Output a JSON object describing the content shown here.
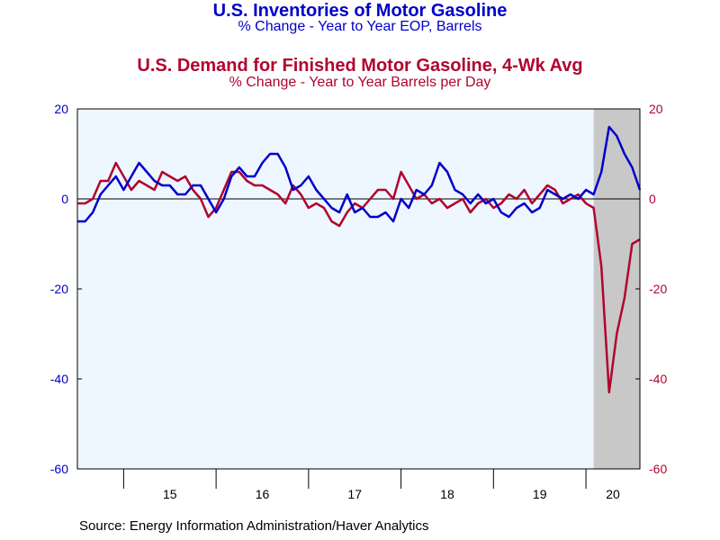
{
  "titles": {
    "title1": "U.S. Inventories of Motor Gasoline",
    "subtitle1": "% Change - Year to Year    EOP,  Barrels",
    "title2": "U.S. Demand for Finished Motor Gasoline, 4-Wk Avg",
    "subtitle2": "% Change - Year to Year     Barrels per Day"
  },
  "source": "Source:  Energy Information Administration/Haver Analytics",
  "chart_data": {
    "type": "line",
    "xlim": [
      "2014-07",
      "2020-08"
    ],
    "ylim": [
      -60,
      20
    ],
    "y_ticks": [
      20,
      0,
      -20,
      -40,
      -60
    ],
    "x_tick_labels": [
      "15",
      "16",
      "17",
      "18",
      "19",
      "20"
    ],
    "recession_shading": [
      "2020-02",
      "2020-08"
    ],
    "zero_line": true,
    "grid": false,
    "colors": {
      "inventories": "#0000c8",
      "demand": "#b0052e",
      "plot_bg": "#eef6ff",
      "shade": "#c8c8c8"
    },
    "series": [
      {
        "values": [
          [
            "2014-07",
            -5
          ],
          [
            "2014-08",
            -5
          ],
          [
            "2014-09",
            -3
          ],
          [
            "2014-10",
            1
          ],
          [
            "2014-11",
            3
          ],
          [
            "2014-12",
            5
          ],
          [
            "2015-01",
            2
          ],
          [
            "2015-02",
            5
          ],
          [
            "2015-03",
            8
          ],
          [
            "2015-04",
            6
          ],
          [
            "2015-05",
            4
          ],
          [
            "2015-06",
            3
          ],
          [
            "2015-07",
            3
          ],
          [
            "2015-08",
            1
          ],
          [
            "2015-09",
            1
          ],
          [
            "2015-10",
            3
          ],
          [
            "2015-11",
            3
          ],
          [
            "2015-12",
            0
          ],
          [
            "2016-01",
            -3
          ],
          [
            "2016-02",
            0
          ],
          [
            "2016-03",
            5
          ],
          [
            "2016-04",
            7
          ],
          [
            "2016-05",
            5
          ],
          [
            "2016-06",
            5
          ],
          [
            "2016-07",
            8
          ],
          [
            "2016-08",
            10
          ],
          [
            "2016-09",
            10
          ],
          [
            "2016-10",
            7
          ],
          [
            "2016-11",
            2
          ],
          [
            "2016-12",
            3
          ],
          [
            "2017-01",
            5
          ],
          [
            "2017-02",
            2
          ],
          [
            "2017-03",
            0
          ],
          [
            "2017-04",
            -2
          ],
          [
            "2017-05",
            -3
          ],
          [
            "2017-06",
            1
          ],
          [
            "2017-07",
            -3
          ],
          [
            "2017-08",
            -2
          ],
          [
            "2017-09",
            -4
          ],
          [
            "2017-10",
            -4
          ],
          [
            "2017-11",
            -3
          ],
          [
            "2017-12",
            -5
          ],
          [
            "2018-01",
            0
          ],
          [
            "2018-02",
            -2
          ],
          [
            "2018-03",
            2
          ],
          [
            "2018-04",
            1
          ],
          [
            "2018-05",
            3
          ],
          [
            "2018-06",
            8
          ],
          [
            "2018-07",
            6
          ],
          [
            "2018-08",
            2
          ],
          [
            "2018-09",
            1
          ],
          [
            "2018-10",
            -1
          ],
          [
            "2018-11",
            1
          ],
          [
            "2018-12",
            -1
          ],
          [
            "2019-01",
            0
          ],
          [
            "2019-02",
            -3
          ],
          [
            "2019-03",
            -4
          ],
          [
            "2019-04",
            -2
          ],
          [
            "2019-05",
            -1
          ],
          [
            "2019-06",
            -3
          ],
          [
            "2019-07",
            -2
          ],
          [
            "2019-08",
            2
          ],
          [
            "2019-09",
            1
          ],
          [
            "2019-10",
            0
          ],
          [
            "2019-11",
            1
          ],
          [
            "2019-12",
            0
          ],
          [
            "2020-01",
            2
          ],
          [
            "2020-02",
            1
          ],
          [
            "2020-03",
            6
          ],
          [
            "2020-04",
            16
          ],
          [
            "2020-05",
            14
          ],
          [
            "2020-06",
            10
          ],
          [
            "2020-07",
            7
          ],
          [
            "2020-08",
            2
          ]
        ]
      },
      {
        "values": [
          [
            "2014-07",
            -1
          ],
          [
            "2014-08",
            -1
          ],
          [
            "2014-09",
            0
          ],
          [
            "2014-10",
            4
          ],
          [
            "2014-11",
            4
          ],
          [
            "2014-12",
            8
          ],
          [
            "2015-01",
            5
          ],
          [
            "2015-02",
            2
          ],
          [
            "2015-03",
            4
          ],
          [
            "2015-04",
            3
          ],
          [
            "2015-05",
            2
          ],
          [
            "2015-06",
            6
          ],
          [
            "2015-07",
            5
          ],
          [
            "2015-08",
            4
          ],
          [
            "2015-09",
            5
          ],
          [
            "2015-10",
            2
          ],
          [
            "2015-11",
            0
          ],
          [
            "2015-12",
            -4
          ],
          [
            "2016-01",
            -2
          ],
          [
            "2016-02",
            2
          ],
          [
            "2016-03",
            6
          ],
          [
            "2016-04",
            6
          ],
          [
            "2016-05",
            4
          ],
          [
            "2016-06",
            3
          ],
          [
            "2016-07",
            3
          ],
          [
            "2016-08",
            2
          ],
          [
            "2016-09",
            1
          ],
          [
            "2016-10",
            -1
          ],
          [
            "2016-11",
            3
          ],
          [
            "2016-12",
            1
          ],
          [
            "2017-01",
            -2
          ],
          [
            "2017-02",
            -1
          ],
          [
            "2017-03",
            -2
          ],
          [
            "2017-04",
            -5
          ],
          [
            "2017-05",
            -6
          ],
          [
            "2017-06",
            -3
          ],
          [
            "2017-07",
            -1
          ],
          [
            "2017-08",
            -2
          ],
          [
            "2017-09",
            0
          ],
          [
            "2017-10",
            2
          ],
          [
            "2017-11",
            2
          ],
          [
            "2017-12",
            0
          ],
          [
            "2018-01",
            6
          ],
          [
            "2018-02",
            3
          ],
          [
            "2018-03",
            0
          ],
          [
            "2018-04",
            1
          ],
          [
            "2018-05",
            -1
          ],
          [
            "2018-06",
            0
          ],
          [
            "2018-07",
            -2
          ],
          [
            "2018-08",
            -1
          ],
          [
            "2018-09",
            0
          ],
          [
            "2018-10",
            -3
          ],
          [
            "2018-11",
            -1
          ],
          [
            "2018-12",
            0
          ],
          [
            "2019-01",
            -2
          ],
          [
            "2019-02",
            -1
          ],
          [
            "2019-03",
            1
          ],
          [
            "2019-04",
            0
          ],
          [
            "2019-05",
            2
          ],
          [
            "2019-06",
            -1
          ],
          [
            "2019-07",
            1
          ],
          [
            "2019-08",
            3
          ],
          [
            "2019-09",
            2
          ],
          [
            "2019-10",
            -1
          ],
          [
            "2019-11",
            0
          ],
          [
            "2019-12",
            1
          ],
          [
            "2020-01",
            -1
          ],
          [
            "2020-02",
            -2
          ],
          [
            "2020-03",
            -15
          ],
          [
            "2020-04",
            -43
          ],
          [
            "2020-05",
            -30
          ],
          [
            "2020-06",
            -22
          ],
          [
            "2020-07",
            -10
          ],
          [
            "2020-08",
            -9
          ]
        ]
      }
    ]
  }
}
